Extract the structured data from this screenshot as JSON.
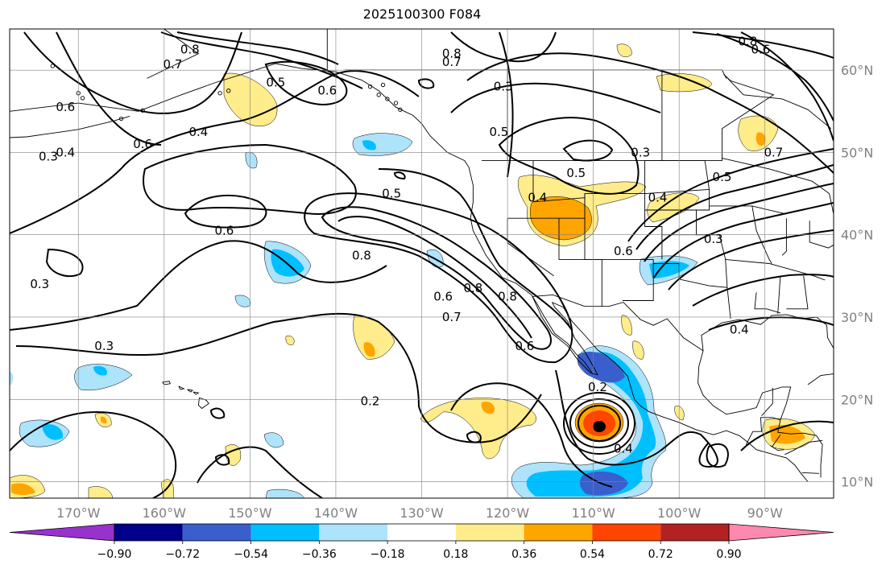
{
  "title": "2025100300 F084",
  "map": {
    "lon_range": [
      -178,
      -82
    ],
    "lat_range": [
      8,
      65
    ],
    "lon_ticks": [
      -170,
      -160,
      -150,
      -140,
      -130,
      -120,
      -110,
      -100,
      -90
    ],
    "lat_ticks": [
      10,
      20,
      30,
      40,
      50,
      60
    ],
    "lon_labels": [
      "170°W",
      "160°W",
      "150°W",
      "140°W",
      "130°W",
      "120°W",
      "110°W",
      "100°W",
      "90°W"
    ],
    "lat_labels": [
      "10°N",
      "20°N",
      "30°N",
      "40°N",
      "50°N",
      "60°N"
    ],
    "grid": true
  },
  "colorbar": {
    "bounds_labels": [
      "−0.90",
      "−0.72",
      "−0.54",
      "−0.36",
      "−0.18",
      "0.18",
      "0.36",
      "0.54",
      "0.72",
      "0.90"
    ],
    "colors": [
      "#9932cc",
      "#00008b",
      "#3a5fcd",
      "#00bfff",
      "#aee3fc",
      "#ffffff",
      "#ffec8b",
      "#ffa500",
      "#ff4500",
      "#b22222",
      "#ff88b0"
    ]
  },
  "contour_labels": [
    {
      "text": "0.8",
      "lon": -157,
      "lat": 62.5
    },
    {
      "text": "0.7",
      "lon": -159,
      "lat": 60.7
    },
    {
      "text": "0.6",
      "lon": -171.5,
      "lat": 55.5
    },
    {
      "text": "0.3",
      "lon": -173.5,
      "lat": 49.5
    },
    {
      "text": "0.4",
      "lon": -171.5,
      "lat": 50
    },
    {
      "text": "0.6",
      "lon": -162.5,
      "lat": 51
    },
    {
      "text": "0.4",
      "lon": -156,
      "lat": 52.5
    },
    {
      "text": "0.5",
      "lon": -147,
      "lat": 58.5
    },
    {
      "text": "0.6",
      "lon": -141,
      "lat": 57.5
    },
    {
      "text": "0.8",
      "lon": -126.5,
      "lat": 62
    },
    {
      "text": "0.7",
      "lon": -126.5,
      "lat": 61
    },
    {
      "text": "0.3",
      "lon": -120.5,
      "lat": 58
    },
    {
      "text": "0.5",
      "lon": -121,
      "lat": 52.5
    },
    {
      "text": "0.5",
      "lon": -133.5,
      "lat": 45
    },
    {
      "text": "0.6",
      "lon": -153,
      "lat": 40.5
    },
    {
      "text": "0.8",
      "lon": -137,
      "lat": 37.5
    },
    {
      "text": "0.4",
      "lon": -116.5,
      "lat": 44.5
    },
    {
      "text": "0.5",
      "lon": -112,
      "lat": 47.5
    },
    {
      "text": "0.4",
      "lon": -102.5,
      "lat": 44.5
    },
    {
      "text": "0.3",
      "lon": -104.5,
      "lat": 50
    },
    {
      "text": "0.6",
      "lon": -106.5,
      "lat": 38
    },
    {
      "text": "0.3",
      "lon": -96,
      "lat": 39.5
    },
    {
      "text": "0.8",
      "lon": -92,
      "lat": 63.5
    },
    {
      "text": "0.6",
      "lon": -90.5,
      "lat": 62.5
    },
    {
      "text": "0.7",
      "lon": -89,
      "lat": 50
    },
    {
      "text": "0.5",
      "lon": -95,
      "lat": 47
    },
    {
      "text": "0.4",
      "lon": -93,
      "lat": 28.5
    },
    {
      "text": "0.3",
      "lon": -174.5,
      "lat": 34
    },
    {
      "text": "0.3",
      "lon": -167,
      "lat": 26.5
    },
    {
      "text": "0.2",
      "lon": -136,
      "lat": 19.8
    },
    {
      "text": "0.6",
      "lon": -127.5,
      "lat": 32.5
    },
    {
      "text": "0.7",
      "lon": -126.5,
      "lat": 30
    },
    {
      "text": "0.8",
      "lon": -124,
      "lat": 33.5
    },
    {
      "text": "0.8",
      "lon": -120,
      "lat": 32.5
    },
    {
      "text": "0.6",
      "lon": -118,
      "lat": 26.5
    },
    {
      "text": "0.2",
      "lon": -109.5,
      "lat": 21.5
    },
    {
      "text": "0.4",
      "lon": -106.5,
      "lat": 14
    }
  ]
}
